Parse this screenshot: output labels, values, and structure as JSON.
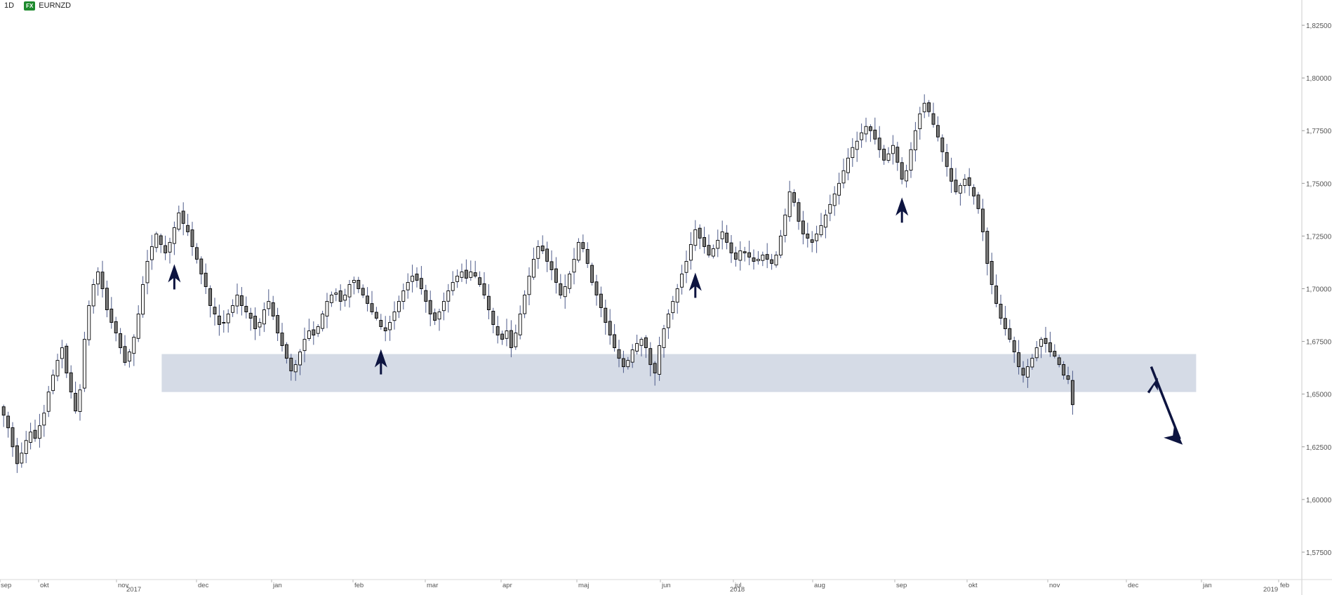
{
  "header": {
    "interval": "1D",
    "source_badge": "FX",
    "symbol": "EURNZD"
  },
  "colors": {
    "candle_up": "#ffffff",
    "candle_down": "#7a7a7a",
    "candle_outline": "#000000",
    "wick": "#4c5a88",
    "zone_fill": "#d5dbe6",
    "arrow": "#0d1440",
    "axis_text": "#555555"
  },
  "chart_data": {
    "type": "candlestick",
    "instrument": "EURNZD",
    "timeframe": "1D",
    "y_axis": {
      "side": "right",
      "min": 1.565,
      "max": 1.835,
      "ticks": [
        "1,57500",
        "1,60000",
        "1,62500",
        "1,65000",
        "1,67500",
        "1,70000",
        "1,72500",
        "1,75000",
        "1,77500",
        "1,80000",
        "1,82500"
      ],
      "tick_values": [
        1.575,
        1.6,
        1.625,
        1.65,
        1.675,
        1.7,
        1.725,
        1.75,
        1.775,
        1.8,
        1.825
      ]
    },
    "x_axis": {
      "months": [
        "sep",
        "okt",
        "nov",
        "dec",
        "jan",
        "feb",
        "mar",
        "apr",
        "maj",
        "jun",
        "jul",
        "aug",
        "sep",
        "okt",
        "nov",
        "dec",
        "jan",
        "feb"
      ],
      "years": [
        "2017",
        "2018",
        "2019"
      ]
    },
    "support_zone": {
      "low": 1.651,
      "high": 1.669
    },
    "closes": [
      1.64,
      1.634,
      1.625,
      1.617,
      1.622,
      1.628,
      1.632,
      1.629,
      1.635,
      1.641,
      1.651,
      1.659,
      1.666,
      1.672,
      1.66,
      1.651,
      1.642,
      1.652,
      1.676,
      1.692,
      1.702,
      1.708,
      1.7,
      1.69,
      1.684,
      1.679,
      1.672,
      1.665,
      1.67,
      1.677,
      1.688,
      1.702,
      1.713,
      1.72,
      1.726,
      1.721,
      1.717,
      1.722,
      1.729,
      1.736,
      1.731,
      1.727,
      1.72,
      1.714,
      1.707,
      1.701,
      1.692,
      1.688,
      1.683,
      1.684,
      1.688,
      1.692,
      1.697,
      1.692,
      1.689,
      1.686,
      1.681,
      1.684,
      1.69,
      1.694,
      1.687,
      1.679,
      1.673,
      1.667,
      1.661,
      1.664,
      1.67,
      1.676,
      1.68,
      1.678,
      1.682,
      1.688,
      1.694,
      1.697,
      1.698,
      1.694,
      1.697,
      1.702,
      1.704,
      1.7,
      1.697,
      1.693,
      1.689,
      1.686,
      1.682,
      1.68,
      1.684,
      1.689,
      1.694,
      1.699,
      1.703,
      1.706,
      1.704,
      1.7,
      1.694,
      1.688,
      1.685,
      1.689,
      1.694,
      1.699,
      1.703,
      1.706,
      1.708,
      1.705,
      1.708,
      1.706,
      1.702,
      1.697,
      1.69,
      1.683,
      1.678,
      1.676,
      1.68,
      1.672,
      1.679,
      1.688,
      1.697,
      1.706,
      1.714,
      1.72,
      1.718,
      1.713,
      1.709,
      1.703,
      1.697,
      1.701,
      1.707,
      1.714,
      1.722,
      1.719,
      1.712,
      1.703,
      1.697,
      1.691,
      1.684,
      1.678,
      1.672,
      1.667,
      1.663,
      1.666,
      1.671,
      1.674,
      1.676,
      1.672,
      1.664,
      1.66,
      1.673,
      1.681,
      1.688,
      1.694,
      1.7,
      1.707,
      1.713,
      1.721,
      1.728,
      1.724,
      1.72,
      1.716,
      1.719,
      1.723,
      1.727,
      1.722,
      1.717,
      1.714,
      1.718,
      1.717,
      1.715,
      1.713,
      1.714,
      1.716,
      1.714,
      1.712,
      1.716,
      1.725,
      1.735,
      1.746,
      1.741,
      1.732,
      1.726,
      1.724,
      1.722,
      1.726,
      1.73,
      1.735,
      1.74,
      1.745,
      1.75,
      1.756,
      1.762,
      1.767,
      1.77,
      1.774,
      1.777,
      1.775,
      1.771,
      1.766,
      1.761,
      1.764,
      1.768,
      1.76,
      1.752,
      1.756,
      1.766,
      1.775,
      1.783,
      1.788,
      1.784,
      1.778,
      1.772,
      1.765,
      1.758,
      1.751,
      1.746,
      1.749,
      1.752,
      1.749,
      1.744,
      1.738,
      1.727,
      1.712,
      1.702,
      1.693,
      1.686,
      1.681,
      1.676,
      1.67,
      1.663,
      1.659,
      1.663,
      1.667,
      1.672,
      1.676,
      1.674,
      1.67,
      1.668,
      1.664,
      1.659,
      1.657,
      1.645
    ]
  },
  "annotations": {
    "up_arrow_bars": [
      38,
      84,
      154,
      200
    ],
    "small_up_arrow_bar": 252,
    "down_arrow": {
      "from_bar": 256,
      "to_bar": 263,
      "from_price": 1.663,
      "to_price": 1.626
    }
  }
}
